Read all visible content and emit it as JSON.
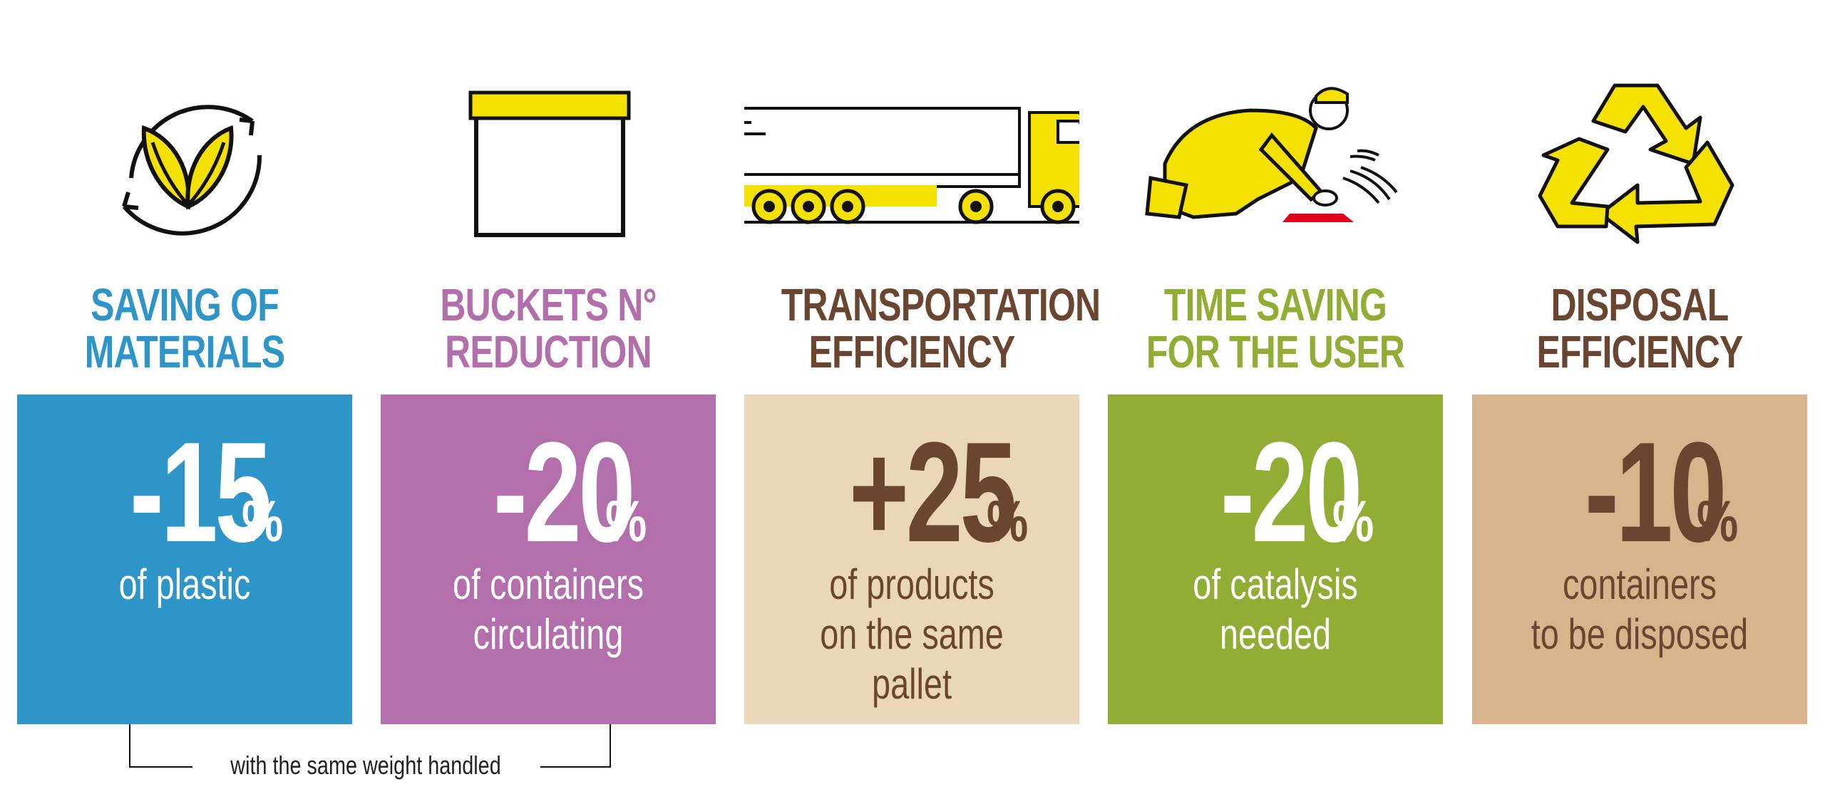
{
  "colors": {
    "blue": "#2e95c8",
    "purple": "#b26fac",
    "beige": "#ead6b8",
    "green": "#92ad33",
    "tan": "#d8b48c",
    "brown": "#6a4630",
    "yellow": "#f5e100",
    "red": "#e3001b"
  },
  "cards": [
    {
      "icon": "leaf-recycle-icon",
      "heading": [
        "SAVING OF",
        "MATERIALS"
      ],
      "value": "-15",
      "unit": "%",
      "description": [
        "of plastic",
        ""
      ]
    },
    {
      "icon": "bucket-icon",
      "heading": [
        "BUCKETS N°",
        "REDUCTION"
      ],
      "value": "-20",
      "unit": "%",
      "description": [
        "of containers",
        "circulating"
      ]
    },
    {
      "icon": "truck-icon",
      "heading": [
        "TRANSPORTATION",
        "EFFICIENCY"
      ],
      "value": "+25",
      "unit": "%",
      "description": [
        "of products",
        "on the same pallet"
      ]
    },
    {
      "icon": "worker-kneeling-icon",
      "heading": [
        "TIME SAVING",
        "FOR THE USER"
      ],
      "value": "-20",
      "unit": "%",
      "description": [
        "of catalysis",
        "needed"
      ]
    },
    {
      "icon": "recycle-arrows-icon",
      "heading": [
        "DISPOSAL",
        "EFFICIENCY"
      ],
      "value": "-10",
      "unit": "%",
      "description": [
        "containers",
        "to be disposed"
      ]
    }
  ],
  "footnote": "with the same weight handled"
}
